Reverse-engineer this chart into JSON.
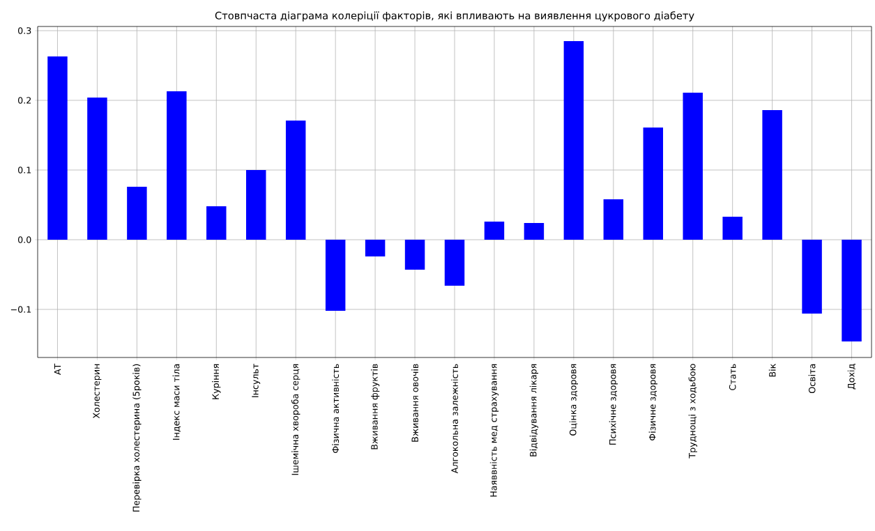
{
  "chart_data": {
    "type": "bar",
    "title": "Стовпчаста діаграма колеріції факторів, які впливають на виявлення цукрового діабету",
    "categories": [
      "АТ",
      "Холестерин",
      "Перевірка холестерина (5років)",
      "Індекс маси тіла",
      "Куріння",
      "Інсульт",
      "Ішемічна хвороба серця",
      "Фізична активність",
      "Вживання фруктів",
      "Вживання овочів",
      "Алгокольна залежність",
      "Наяввність мед страхування",
      "Відвідування лікаря",
      "Оцінка здоровя",
      "Психічне здоровя",
      "Фізичне здоровя",
      "Труднощі з ходьбою",
      "Стать",
      "Вік",
      "Освіта",
      "Дохід"
    ],
    "values": [
      0.263,
      0.204,
      0.076,
      0.213,
      0.048,
      0.1,
      0.171,
      -0.102,
      -0.024,
      -0.043,
      -0.066,
      0.026,
      0.024,
      0.285,
      0.058,
      0.161,
      0.211,
      0.033,
      0.186,
      -0.106,
      -0.146
    ],
    "color": "#0000ff",
    "ylim": [
      -0.169,
      0.306
    ],
    "yticks": [
      {
        "value": -0.1,
        "label": "−0.1"
      },
      {
        "value": 0,
        "label": "0.0"
      },
      {
        "value": 0.1,
        "label": "0.1"
      },
      {
        "value": 0.2,
        "label": "0.2"
      },
      {
        "value": 0.3,
        "label": "0.3"
      }
    ],
    "grid": true
  }
}
